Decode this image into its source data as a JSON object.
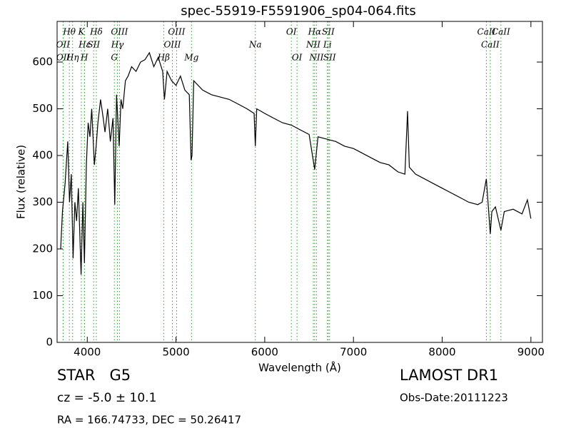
{
  "chart_data": {
    "type": "line",
    "title": "spec-55919-F5591906_sp04-064.fits",
    "xlabel": "Wavelength (Å)",
    "ylabel": "Flux (relative)",
    "annotations": {
      "class": "STAR   G5",
      "cz": "cz = -5.0 ± 10.1",
      "coords": "RA = 166.74733, DEC = 50.26417",
      "survey": "LAMOST DR1",
      "date": "Obs-Date:20111223"
    },
    "color": "#000000",
    "line_color": "#2ca02c",
    "xlim": [
      3660,
      9130
    ],
    "ylim": [
      0,
      687
    ],
    "xticks": [
      4000,
      5000,
      6000,
      7000,
      8000,
      9000
    ],
    "yticks": [
      0,
      100,
      200,
      300,
      400,
      500,
      600
    ],
    "x": [
      3700,
      3720,
      3750,
      3780,
      3800,
      3820,
      3840,
      3860,
      3880,
      3900,
      3930,
      3950,
      3968,
      3990,
      4010,
      4030,
      4050,
      4080,
      4100,
      4120,
      4150,
      4180,
      4200,
      4230,
      4260,
      4290,
      4310,
      4330,
      4360,
      4380,
      4400,
      4430,
      4460,
      4500,
      4550,
      4600,
      4650,
      4700,
      4750,
      4800,
      4850,
      4870,
      4900,
      4950,
      5000,
      5050,
      5100,
      5150,
      5170,
      5180,
      5200,
      5300,
      5400,
      5500,
      5600,
      5700,
      5800,
      5880,
      5894,
      5910,
      6000,
      6100,
      6200,
      6300,
      6400,
      6500,
      6563,
      6600,
      6700,
      6800,
      6900,
      7000,
      7100,
      7200,
      7300,
      7400,
      7500,
      7580,
      7610,
      7630,
      7700,
      7800,
      7900,
      8000,
      8100,
      8200,
      8300,
      8400,
      8450,
      8498,
      8520,
      8542,
      8560,
      8600,
      8662,
      8700,
      8800,
      8900,
      8960,
      9000
    ],
    "values": [
      200,
      280,
      340,
      430,
      300,
      360,
      180,
      300,
      260,
      330,
      145,
      300,
      170,
      380,
      470,
      440,
      500,
      380,
      420,
      470,
      520,
      480,
      450,
      500,
      430,
      480,
      295,
      530,
      420,
      520,
      500,
      560,
      570,
      590,
      580,
      600,
      605,
      620,
      590,
      610,
      580,
      520,
      580,
      560,
      550,
      570,
      540,
      530,
      390,
      400,
      560,
      540,
      530,
      525,
      520,
      510,
      500,
      490,
      420,
      500,
      490,
      480,
      470,
      465,
      455,
      445,
      370,
      440,
      435,
      430,
      420,
      415,
      405,
      395,
      385,
      380,
      365,
      360,
      495,
      375,
      360,
      350,
      340,
      330,
      320,
      310,
      300,
      295,
      300,
      350,
      290,
      232,
      280,
      290,
      240,
      280,
      285,
      275,
      305,
      265
    ],
    "lines": [
      {
        "label": "Hθ",
        "wavelength": 3798
      },
      {
        "label": "OII",
        "wavelength": 3727
      },
      {
        "label": "OII",
        "wavelength": 3729
      },
      {
        "label": "K",
        "wavelength": 3933
      },
      {
        "label": "Hε",
        "wavelength": 3970
      },
      {
        "label": "Hη",
        "wavelength": 3835
      },
      {
        "label": "Hδ",
        "wavelength": 4102
      },
      {
        "label": "SII",
        "wavelength": 4072
      },
      {
        "label": "H",
        "wavelength": 3968
      },
      {
        "label": "OIII",
        "wavelength": 4363
      },
      {
        "label": "Hγ",
        "wavelength": 4340
      },
      {
        "label": "G",
        "wavelength": 4305
      },
      {
        "label": "OIII",
        "wavelength": 5007
      },
      {
        "label": "OIII",
        "wavelength": 4959
      },
      {
        "label": "Hβ",
        "wavelength": 4861
      },
      {
        "label": "OI",
        "wavelength": 6300
      },
      {
        "label": "Na",
        "wavelength": 5894
      },
      {
        "label": "Mg",
        "wavelength": 5175
      },
      {
        "label": "Hα",
        "wavelength": 6563
      },
      {
        "label": "NII",
        "wavelength": 6548
      },
      {
        "label": "OI",
        "wavelength": 6364
      },
      {
        "label": "SII",
        "wavelength": 6716
      },
      {
        "label": "Li",
        "wavelength": 6707
      },
      {
        "label": "NII",
        "wavelength": 6583
      },
      {
        "label": "CaII",
        "wavelength": 8498
      },
      {
        "label": "CaII",
        "wavelength": 8542
      },
      {
        "label": "SII",
        "wavelength": 6731
      },
      {
        "label": "CaII",
        "wavelength": 8662
      }
    ]
  }
}
